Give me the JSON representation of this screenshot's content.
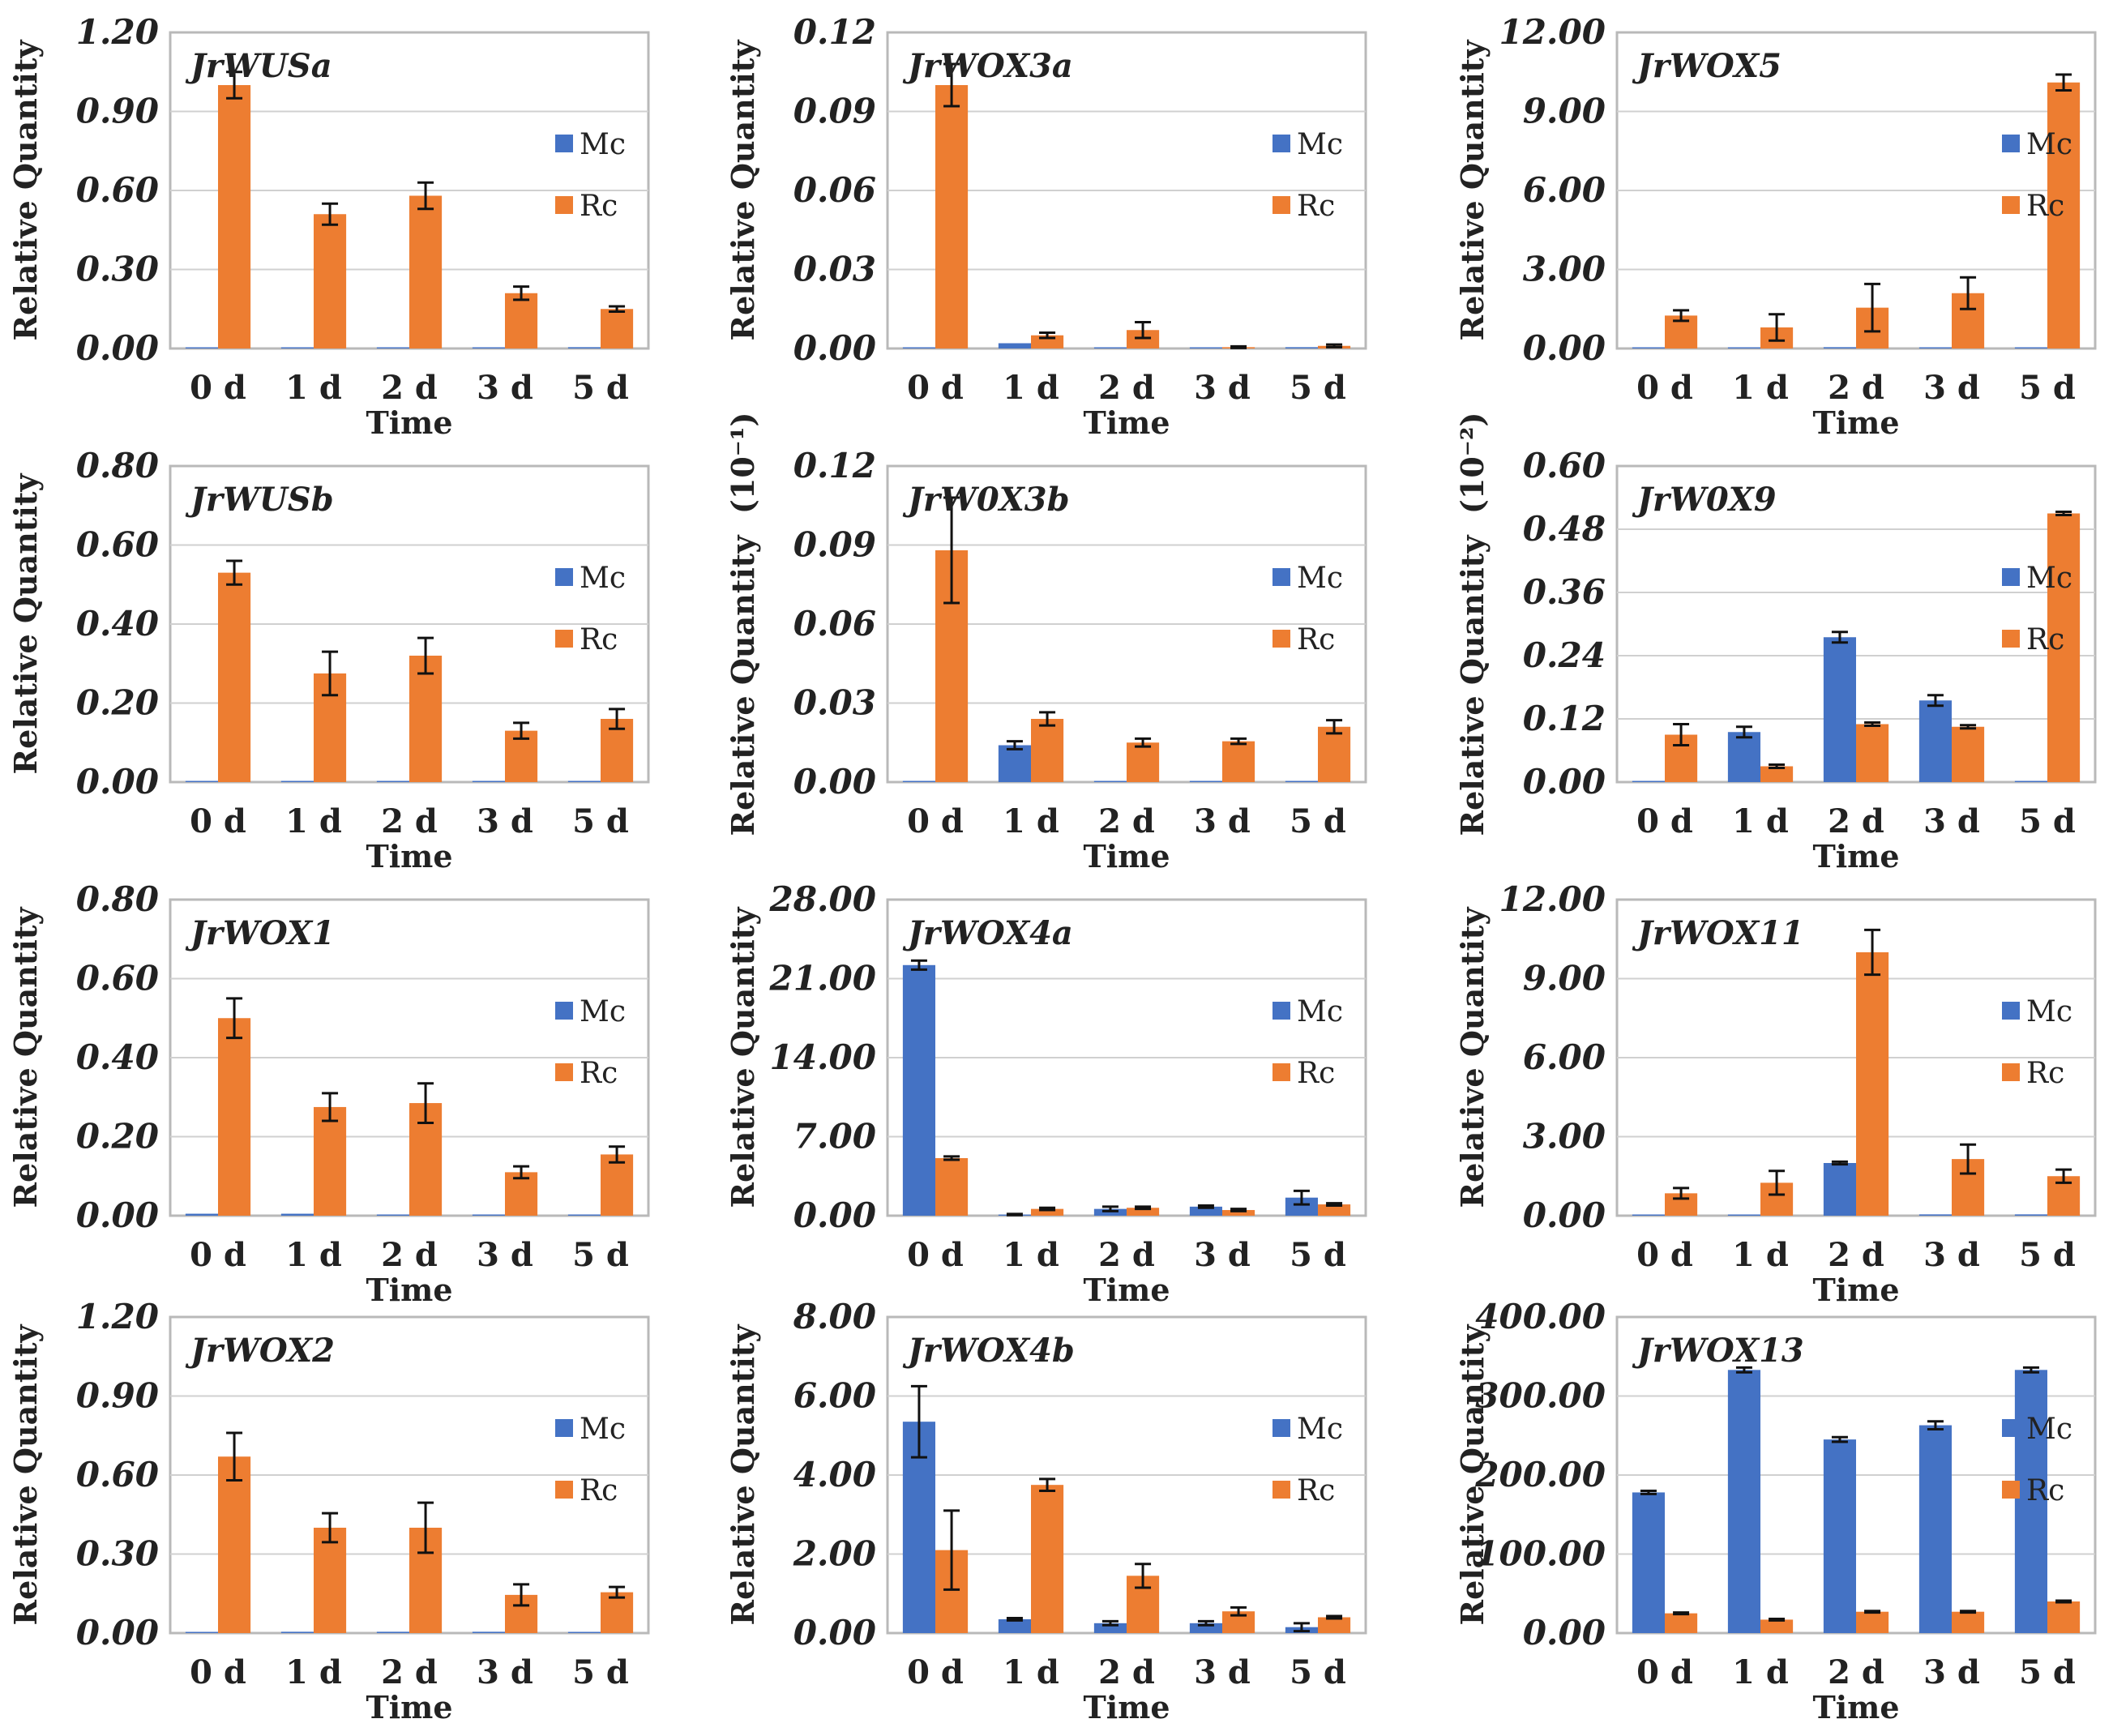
{
  "colors": {
    "Mc": "#4472C4",
    "Rc": "#ED7D31"
  },
  "chart_data": [
    {
      "type": "bar",
      "title": "JrWUSa",
      "xlabel": "Time",
      "ylabel": "Relative Quantity",
      "categories": [
        "0 d",
        "1 d",
        "2 d",
        "3 d",
        "5 d"
      ],
      "ylim": [
        0,
        1.2
      ],
      "yticks": [
        "0.00",
        "0.30",
        "0.60",
        "0.90",
        "1.20"
      ],
      "series": [
        {
          "name": "Mc",
          "values": [
            0,
            0,
            0,
            0,
            0.005
          ],
          "errors": [
            0,
            0,
            0,
            0,
            0
          ]
        },
        {
          "name": "Rc",
          "values": [
            1.0,
            0.51,
            0.58,
            0.21,
            0.15
          ],
          "errors": [
            0.05,
            0.04,
            0.05,
            0.025,
            0.01
          ]
        }
      ]
    },
    {
      "type": "bar",
      "title": "JrWOX3a",
      "xlabel": "Time",
      "ylabel": "Relative Quantity",
      "categories": [
        "0 d",
        "1 d",
        "2 d",
        "3 d",
        "5 d"
      ],
      "ylim": [
        0,
        0.12
      ],
      "yticks": [
        "0.00",
        "0.03",
        "0.06",
        "0.09",
        "0.12"
      ],
      "series": [
        {
          "name": "Mc",
          "values": [
            0,
            0.002,
            0,
            0,
            0.0005
          ],
          "errors": [
            0,
            0,
            0,
            0,
            0
          ]
        },
        {
          "name": "Rc",
          "values": [
            0.1,
            0.005,
            0.007,
            0.0005,
            0.001
          ],
          "errors": [
            0.008,
            0.001,
            0.003,
            0.0003,
            0.0005
          ]
        }
      ]
    },
    {
      "type": "bar",
      "title": "JrWOX5",
      "xlabel": "Time",
      "ylabel": "Relative Quantity",
      "categories": [
        "0 d",
        "1 d",
        "2 d",
        "3 d",
        "5 d"
      ],
      "ylim": [
        0,
        12
      ],
      "yticks": [
        "0.00",
        "3.00",
        "6.00",
        "9.00",
        "12.00"
      ],
      "series": [
        {
          "name": "Mc",
          "values": [
            0,
            0,
            0.05,
            0,
            0
          ],
          "errors": [
            0,
            0,
            0,
            0,
            0
          ]
        },
        {
          "name": "Rc",
          "values": [
            1.25,
            0.8,
            1.55,
            2.1,
            10.1
          ],
          "errors": [
            0.2,
            0.5,
            0.9,
            0.6,
            0.3
          ]
        }
      ]
    },
    {
      "type": "bar",
      "title": "JrWUSb",
      "xlabel": "Time",
      "ylabel": "Relative Quantity",
      "categories": [
        "0 d",
        "1 d",
        "2 d",
        "3 d",
        "5 d"
      ],
      "ylim": [
        0,
        0.8
      ],
      "yticks": [
        "0.00",
        "0.20",
        "0.40",
        "0.60",
        "0.80"
      ],
      "series": [
        {
          "name": "Mc",
          "values": [
            0,
            0,
            0,
            0,
            0
          ],
          "errors": [
            0,
            0,
            0,
            0,
            0
          ]
        },
        {
          "name": "Rc",
          "values": [
            0.53,
            0.275,
            0.32,
            0.13,
            0.16
          ],
          "errors": [
            0.03,
            0.055,
            0.045,
            0.02,
            0.025
          ]
        }
      ]
    },
    {
      "type": "bar",
      "title": "JrW0X3b",
      "xlabel": "Time",
      "ylabel": "Relative Quantity  (10⁻¹)",
      "categories": [
        "0 d",
        "1 d",
        "2 d",
        "3 d",
        "5 d"
      ],
      "ylim": [
        0,
        0.12
      ],
      "yticks": [
        "0.00",
        "0.03",
        "0.06",
        "0.09",
        "0.12"
      ],
      "series": [
        {
          "name": "Mc",
          "values": [
            0,
            0.014,
            0,
            0,
            0
          ],
          "errors": [
            0,
            0.0015,
            0,
            0,
            0
          ]
        },
        {
          "name": "Rc",
          "values": [
            0.088,
            0.024,
            0.015,
            0.0155,
            0.021
          ],
          "errors": [
            0.02,
            0.0025,
            0.0015,
            0.001,
            0.0025
          ]
        }
      ]
    },
    {
      "type": "bar",
      "title": "JrW0X9",
      "xlabel": "Time",
      "ylabel": "Relative Quantity  (10⁻²)",
      "categories": [
        "0 d",
        "1 d",
        "2 d",
        "3 d",
        "5 d"
      ],
      "ylim": [
        0,
        0.6
      ],
      "yticks": [
        "0.00",
        "0.12",
        "0.24",
        "0.36",
        "0.48",
        "0.60"
      ],
      "series": [
        {
          "name": "Mc",
          "values": [
            0,
            0.095,
            0.275,
            0.155,
            0
          ],
          "errors": [
            0,
            0.01,
            0.01,
            0.01,
            0
          ]
        },
        {
          "name": "Rc",
          "values": [
            0.09,
            0.03,
            0.11,
            0.105,
            0.51
          ],
          "errors": [
            0.02,
            0.003,
            0.003,
            0.003,
            0.003
          ]
        }
      ]
    },
    {
      "type": "bar",
      "title": "JrWOX1",
      "xlabel": "Time",
      "ylabel": "Relative Quantity",
      "categories": [
        "0 d",
        "1 d",
        "2 d",
        "3 d",
        "5 d"
      ],
      "ylim": [
        0,
        0.8
      ],
      "yticks": [
        "0.00",
        "0.20",
        "0.40",
        "0.60",
        "0.80"
      ],
      "series": [
        {
          "name": "Mc",
          "values": [
            0.005,
            0.005,
            0,
            0,
            0
          ],
          "errors": [
            0,
            0,
            0,
            0,
            0
          ]
        },
        {
          "name": "Rc",
          "values": [
            0.5,
            0.275,
            0.285,
            0.11,
            0.155
          ],
          "errors": [
            0.05,
            0.035,
            0.05,
            0.015,
            0.02
          ]
        }
      ]
    },
    {
      "type": "bar",
      "title": "JrWOX4a",
      "xlabel": "Time",
      "ylabel": "Relative Quantity",
      "categories": [
        "0 d",
        "1 d",
        "2 d",
        "3 d",
        "5 d"
      ],
      "ylim": [
        0,
        28
      ],
      "yticks": [
        "0.00",
        "7.00",
        "14.00",
        "21.00",
        "28.00"
      ],
      "series": [
        {
          "name": "Mc",
          "values": [
            22.2,
            0.1,
            0.6,
            0.8,
            1.6
          ],
          "errors": [
            0.4,
            0.05,
            0.2,
            0.1,
            0.6
          ]
        },
        {
          "name": "Rc",
          "values": [
            5.1,
            0.6,
            0.7,
            0.5,
            1.0
          ],
          "errors": [
            0.15,
            0.1,
            0.1,
            0.1,
            0.1
          ]
        }
      ]
    },
    {
      "type": "bar",
      "title": "JrWOX11",
      "xlabel": "Time",
      "ylabel": "Relative Quantity",
      "categories": [
        "0 d",
        "1 d",
        "2 d",
        "3 d",
        "5 d"
      ],
      "ylim": [
        0,
        12
      ],
      "yticks": [
        "0.00",
        "3.00",
        "6.00",
        "9.00",
        "12.00"
      ],
      "series": [
        {
          "name": "Mc",
          "values": [
            0,
            0,
            2.0,
            0.05,
            0.05
          ],
          "errors": [
            0,
            0,
            0.05,
            0,
            0
          ]
        },
        {
          "name": "Rc",
          "values": [
            0.85,
            1.25,
            10.0,
            2.15,
            1.5
          ],
          "errors": [
            0.2,
            0.45,
            0.85,
            0.55,
            0.25
          ]
        }
      ]
    },
    {
      "type": "bar",
      "title": "JrWOX2",
      "xlabel": "Time",
      "ylabel": "Relative Quantity",
      "categories": [
        "0 d",
        "1 d",
        "2 d",
        "3 d",
        "5 d"
      ],
      "ylim": [
        0,
        1.2
      ],
      "yticks": [
        "0.00",
        "0.30",
        "0.60",
        "0.90",
        "1.20"
      ],
      "series": [
        {
          "name": "Mc",
          "values": [
            0,
            0.005,
            0.005,
            0.005,
            0
          ],
          "errors": [
            0,
            0,
            0,
            0,
            0
          ]
        },
        {
          "name": "Rc",
          "values": [
            0.67,
            0.4,
            0.4,
            0.145,
            0.155
          ],
          "errors": [
            0.09,
            0.055,
            0.095,
            0.04,
            0.02
          ]
        }
      ]
    },
    {
      "type": "bar",
      "title": "JrWOX4b",
      "xlabel": "Time",
      "ylabel": "Relative Quantity",
      "categories": [
        "0 d",
        "1 d",
        "2 d",
        "3 d",
        "5 d"
      ],
      "ylim": [
        0,
        8
      ],
      "yticks": [
        "0.00",
        "2.00",
        "4.00",
        "6.00",
        "8.00"
      ],
      "series": [
        {
          "name": "Mc",
          "values": [
            5.35,
            0.35,
            0.25,
            0.25,
            0.15
          ],
          "errors": [
            0.9,
            0.03,
            0.05,
            0.05,
            0.1
          ]
        },
        {
          "name": "Rc",
          "values": [
            2.1,
            3.75,
            1.45,
            0.55,
            0.4
          ],
          "errors": [
            1.0,
            0.15,
            0.3,
            0.1,
            0.03
          ]
        }
      ]
    },
    {
      "type": "bar",
      "title": "JrWOX13",
      "xlabel": "Time",
      "ylabel": "Relative Quantity",
      "categories": [
        "0 d",
        "1 d",
        "2 d",
        "3 d",
        "5 d"
      ],
      "ylim": [
        0,
        400
      ],
      "yticks": [
        "0.00",
        "100.00",
        "200.00",
        "300.00",
        "400.00"
      ],
      "series": [
        {
          "name": "Mc",
          "values": [
            178,
            333,
            245,
            263,
            333
          ],
          "errors": [
            2,
            3,
            3,
            5,
            3
          ]
        },
        {
          "name": "Rc",
          "values": [
            25,
            17,
            27,
            27,
            40
          ],
          "errors": [
            1,
            1,
            1,
            1,
            1
          ]
        }
      ]
    }
  ]
}
